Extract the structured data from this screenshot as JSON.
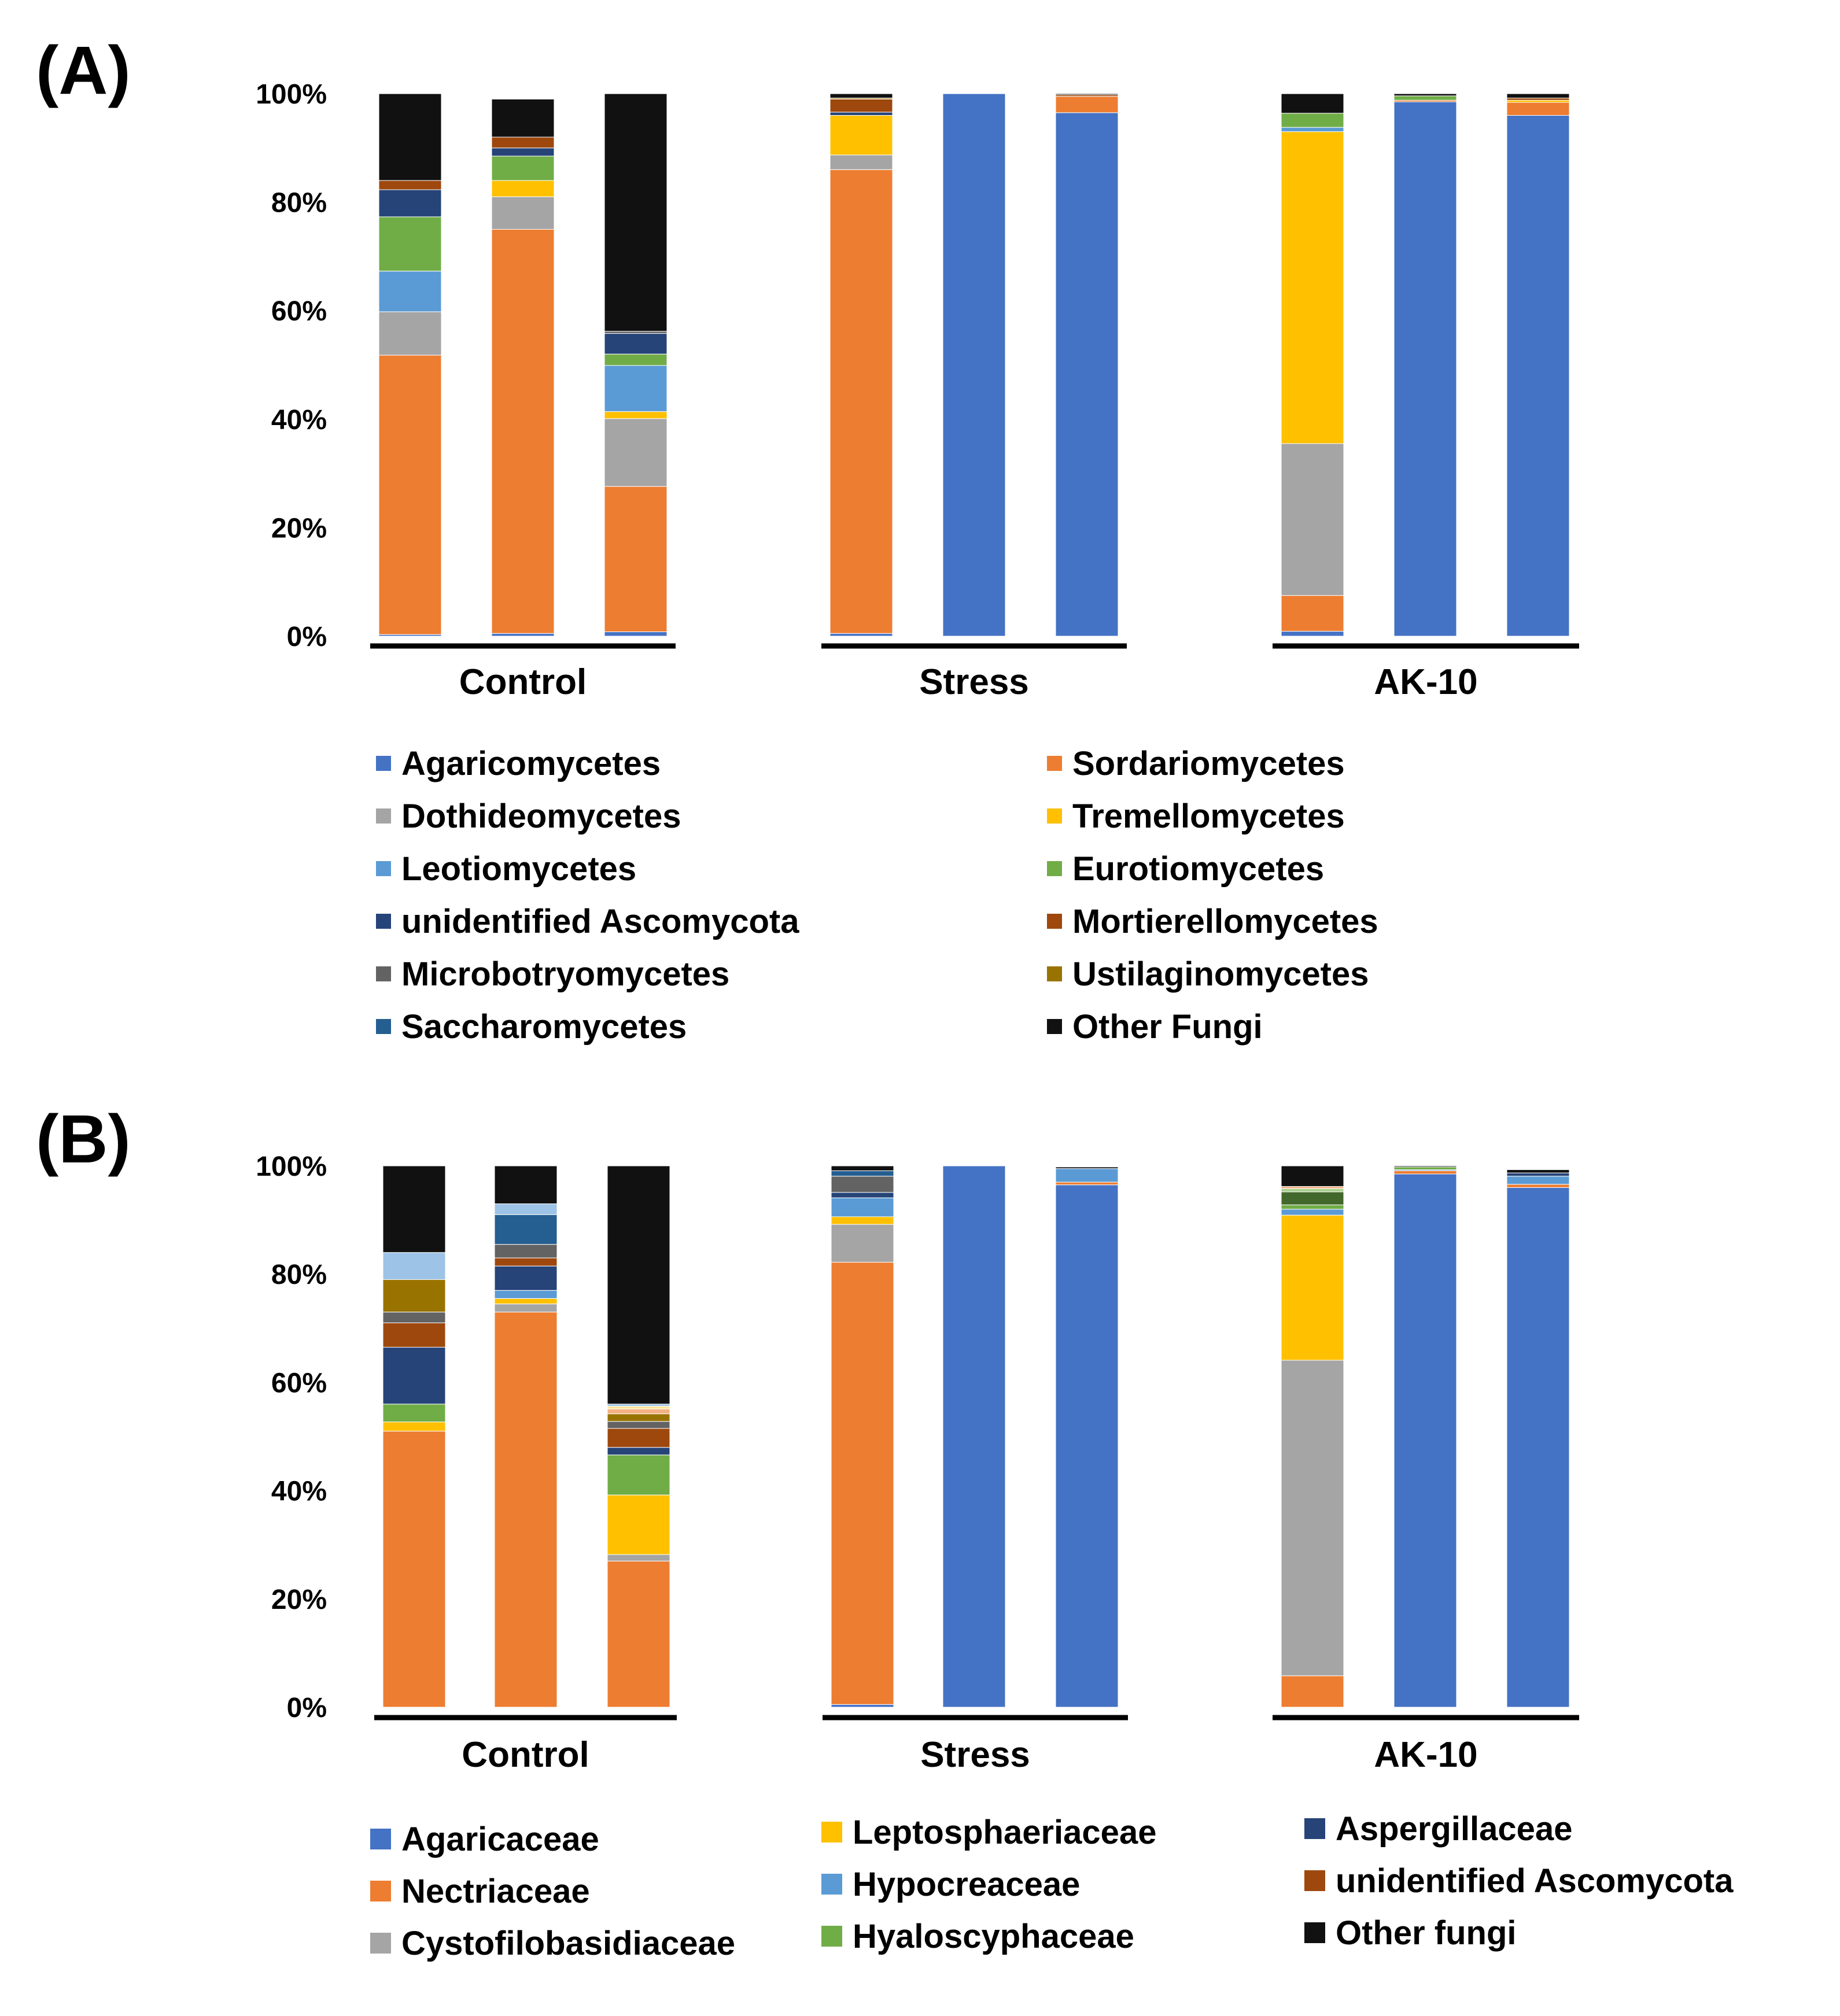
{
  "chart_data": [
    {
      "panel_label": "(A)",
      "type": "bar",
      "stacked": true,
      "ylim": [
        0,
        100
      ],
      "yticks": [
        "0%",
        "20%",
        "40%",
        "60%",
        "80%",
        "100%"
      ],
      "groups": [
        "Control",
        "Stress",
        "AK-10"
      ],
      "bars_per_group": 3,
      "grid": false,
      "legend_position": "bottom",
      "series": [
        {
          "name": "Agaricomycetes",
          "color": "#4472C4",
          "values": [
            0.3,
            0.5,
            0.8,
            0.5,
            100,
            96.5,
            0.9,
            98.5,
            96
          ]
        },
        {
          "name": "Sordariomycetes",
          "color": "#ED7D31",
          "values": [
            51.5,
            74.5,
            26.8,
            85.5,
            0,
            3.0,
            6.6,
            0.3,
            2.4
          ]
        },
        {
          "name": "Dothideomycetes",
          "color": "#A5A5A5",
          "values": [
            8,
            6,
            12.5,
            2.7,
            0,
            0,
            28,
            0,
            0
          ]
        },
        {
          "name": "Tremellomycetes",
          "color": "#FFC000",
          "values": [
            0,
            3,
            1.3,
            7.3,
            0,
            0,
            57.5,
            0,
            0.4
          ]
        },
        {
          "name": "Leotiomycetes",
          "color": "#5B9BD5",
          "values": [
            7.5,
            0,
            8.5,
            0,
            0,
            0,
            0.8,
            0,
            0
          ]
        },
        {
          "name": "Eurotiomycetes",
          "color": "#70AD47",
          "values": [
            10,
            4.5,
            2.1,
            0,
            0,
            0,
            2.6,
            0.8,
            0
          ]
        },
        {
          "name": "unidentified Ascomycota",
          "color": "#264478",
          "values": [
            5,
            1.5,
            3.8,
            0.6,
            0,
            0,
            0,
            0,
            0
          ]
        },
        {
          "name": "Mortierellomycetes",
          "color": "#9E480E",
          "values": [
            1.7,
            2.0,
            0,
            2.4,
            0,
            0.3,
            0,
            0,
            0.4
          ]
        },
        {
          "name": "Microbotryomycetes",
          "color": "#636363",
          "values": [
            0,
            0,
            0.4,
            0,
            0,
            0,
            0,
            0,
            0
          ]
        },
        {
          "name": "Ustilaginomycetes",
          "color": "#997300",
          "values": [
            0,
            0,
            0,
            0.2,
            0,
            0,
            0,
            0,
            0
          ]
        },
        {
          "name": "Saccharomycetes",
          "color": "#255E91",
          "values": [
            0,
            0,
            0,
            0,
            0,
            0,
            0,
            0,
            0
          ]
        },
        {
          "name": "Other Fungi",
          "color": "#111111",
          "values": [
            16,
            7.0,
            43.8,
            0.8,
            0,
            0.2,
            3.6,
            0.4,
            0.8
          ]
        }
      ]
    },
    {
      "panel_label": "(B)",
      "type": "bar",
      "stacked": true,
      "ylim": [
        0,
        100
      ],
      "yticks": [
        "0%",
        "20%",
        "40%",
        "60%",
        "80%",
        "100%"
      ],
      "groups": [
        "Control",
        "Stress",
        "AK-10"
      ],
      "bars_per_group": 3,
      "grid": false,
      "legend_position": "bottom",
      "series": [
        {
          "name": "Agaricaceae",
          "color": "#4472C4",
          "values": [
            0,
            0,
            0,
            0.5,
            100,
            96.5,
            0,
            98.5,
            96
          ]
        },
        {
          "name": "Nectriaceae",
          "color": "#ED7D31",
          "values": [
            51,
            73,
            27,
            81.7,
            0,
            0.5,
            5.8,
            0.6,
            0.6
          ]
        },
        {
          "name": "Cystofilobasidiaceae",
          "color": "#A5A5A5",
          "values": [
            0,
            1.5,
            1.2,
            7.0,
            0,
            0,
            58.3,
            0,
            0
          ]
        },
        {
          "name": "Leptosphaeriaceae",
          "color": "#FFC000",
          "values": [
            1.7,
            1.0,
            11,
            1.4,
            0,
            0,
            26.8,
            0,
            0
          ]
        },
        {
          "name": "Hypocreaceae",
          "color": "#5B9BD5",
          "values": [
            0,
            1.5,
            0,
            3.5,
            0,
            2.5,
            1.1,
            0.2,
            1.5
          ]
        },
        {
          "name": "Hyaloscyphaceae",
          "color": "#70AD47",
          "values": [
            3.3,
            0,
            7.4,
            0,
            0,
            0,
            0.8,
            0.5,
            0
          ]
        },
        {
          "name": "Aspergillaceae",
          "color": "#264478",
          "values": [
            10.5,
            4.5,
            1.4,
            1.0,
            0,
            0,
            0,
            0,
            0.6
          ]
        },
        {
          "name": "unidentified Ascomycota",
          "color": "#9E480E",
          "values": [
            4.5,
            1.5,
            3.5,
            0,
            0,
            0,
            0,
            0,
            0
          ]
        },
        {
          "name": "Other fungi",
          "color": "#111111",
          "values": [
            16,
            7.0,
            45,
            1.0,
            0,
            0.3,
            3.8,
            0.2,
            0.6
          ]
        }
      ],
      "unlisted_segments": [
        {
          "color": "#636363",
          "values": [
            2.0,
            2.5,
            1.3,
            3.0,
            0,
            0,
            0,
            0,
            0
          ]
        },
        {
          "color": "#997300",
          "values": [
            6.0,
            0,
            1.4,
            0,
            0,
            0,
            0,
            0,
            0
          ]
        },
        {
          "color": "#255E91",
          "values": [
            0,
            5.5,
            0,
            1.0,
            0,
            0,
            0,
            0,
            0
          ]
        },
        {
          "color": "#43682B",
          "values": [
            0,
            0,
            0,
            0,
            0,
            0,
            2.4,
            0,
            0
          ]
        },
        {
          "color": "#A9D18E",
          "values": [
            0,
            0,
            0,
            0,
            0,
            0,
            0.6,
            0,
            0
          ]
        },
        {
          "color": "#F4B183",
          "values": [
            0,
            0,
            0.9,
            0,
            0,
            0,
            0.4,
            0,
            0
          ]
        },
        {
          "color": "#FFE699",
          "values": [
            0,
            0,
            0.5,
            0,
            0,
            0,
            0,
            0,
            0
          ]
        },
        {
          "color": "#9DC3E6",
          "values": [
            5.0,
            2.0,
            0.4,
            0,
            0,
            0,
            0,
            0,
            0
          ]
        }
      ]
    }
  ]
}
